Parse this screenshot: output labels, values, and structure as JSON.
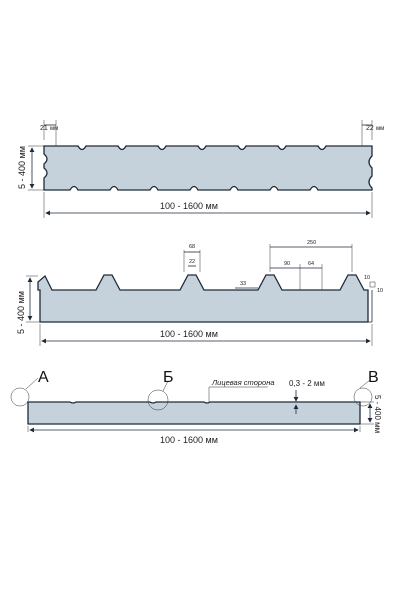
{
  "panel_1": {
    "left_joint": "21",
    "left_joint_unit": "мм",
    "right_joint": "22",
    "right_joint_unit": "мм",
    "thickness": "5 - 400 мм",
    "width": "100 - 1600 мм"
  },
  "panel_2": {
    "rib_top": "68",
    "rib_inner": "22",
    "rib_pitch": "250",
    "rib_base_1": "90",
    "rib_base_2": "64",
    "small_step": "33",
    "edge_1": "10",
    "edge_2": "10",
    "thickness": "5 - 400 мм",
    "width": "100 - 1600 мм"
  },
  "panel_3": {
    "label_a": "А",
    "label_b": "Б",
    "label_v": "В",
    "face_side": "Лицевая сторона",
    "sheet_thickness": "0,3 - 2 мм",
    "thickness": "5 - 400 мм",
    "width": "100 - 1600 мм"
  }
}
